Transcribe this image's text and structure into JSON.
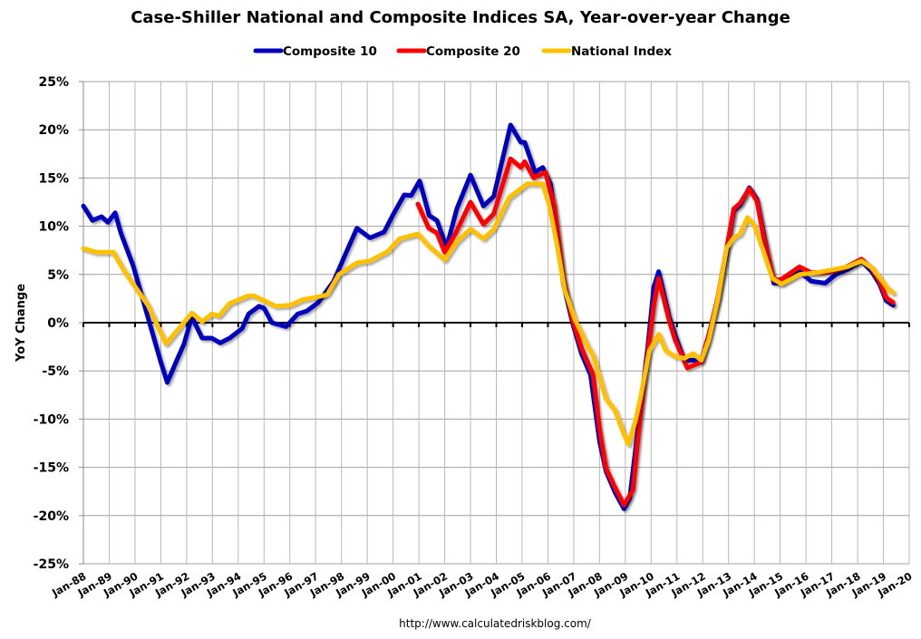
{
  "chart_data": {
    "type": "line",
    "title": "Case-Shiller National and Composite Indices SA, Year-over-year Change",
    "xlabel": "",
    "ylabel": "YoY Change",
    "source": "http://www.calculatedriskblog.com/",
    "xlim": [
      1988,
      2020
    ],
    "ylim": [
      -25,
      25
    ],
    "yticks": [
      "25%",
      "20%",
      "15%",
      "10%",
      "5%",
      "0%",
      "-5%",
      "-10%",
      "-15%",
      "-20%",
      "-25%"
    ],
    "ytick_values": [
      25,
      20,
      15,
      10,
      5,
      0,
      -5,
      -10,
      -15,
      -20,
      -25
    ],
    "xticks": [
      "Jan-88",
      "Jan-89",
      "Jan-90",
      "Jan-91",
      "Jan-92",
      "Jan-93",
      "Jan-94",
      "Jan-95",
      "Jan-96",
      "Jan-97",
      "Jan-98",
      "Jan-99",
      "Jan-00",
      "Jan-01",
      "Jan-02",
      "Jan-03",
      "Jan-04",
      "Jan-05",
      "Jan-06",
      "Jan-07",
      "Jan-08",
      "Jan-09",
      "Jan-10",
      "Jan-11",
      "Jan-12",
      "Jan-13",
      "Jan-14",
      "Jan-15",
      "Jan-16",
      "Jan-17",
      "Jan-18",
      "Jan-19",
      "Jan-20"
    ],
    "grid": true,
    "legend_position": "top",
    "series": [
      {
        "name": "Composite 10",
        "color": "#0000BE",
        "points": [
          [
            1988.0,
            12.1
          ],
          [
            1988.35,
            10.6
          ],
          [
            1988.7,
            11.0
          ],
          [
            1988.95,
            10.4
          ],
          [
            1989.23,
            11.4
          ],
          [
            1989.45,
            9.3
          ],
          [
            1989.93,
            5.9
          ],
          [
            1990.4,
            1.5
          ],
          [
            1991.0,
            -4.1
          ],
          [
            1991.25,
            -6.2
          ],
          [
            1991.6,
            -4.0
          ],
          [
            1991.9,
            -2.2
          ],
          [
            1992.2,
            0.6
          ],
          [
            1992.6,
            -1.6
          ],
          [
            1992.97,
            -1.6
          ],
          [
            1993.3,
            -2.1
          ],
          [
            1993.67,
            -1.6
          ],
          [
            1994.15,
            -0.6
          ],
          [
            1994.4,
            0.9
          ],
          [
            1994.8,
            1.7
          ],
          [
            1995.0,
            1.5
          ],
          [
            1995.3,
            0.0
          ],
          [
            1995.85,
            -0.4
          ],
          [
            1996.3,
            0.9
          ],
          [
            1996.65,
            1.2
          ],
          [
            1997.1,
            2.1
          ],
          [
            1997.7,
            4.3
          ],
          [
            1998.15,
            7.1
          ],
          [
            1998.6,
            9.8
          ],
          [
            1999.1,
            8.8
          ],
          [
            1999.65,
            9.4
          ],
          [
            2000.0,
            11.2
          ],
          [
            2000.43,
            13.25
          ],
          [
            2000.7,
            13.2
          ],
          [
            2001.03,
            14.7
          ],
          [
            2001.4,
            11.1
          ],
          [
            2001.7,
            10.6
          ],
          [
            2002.07,
            7.8
          ],
          [
            2002.47,
            11.8
          ],
          [
            2003.0,
            15.3
          ],
          [
            2003.5,
            12.1
          ],
          [
            2003.9,
            13.1
          ],
          [
            2004.55,
            20.5
          ],
          [
            2004.95,
            18.7
          ],
          [
            2005.1,
            18.7
          ],
          [
            2005.5,
            15.6
          ],
          [
            2005.8,
            16.1
          ],
          [
            2006.1,
            14.4
          ],
          [
            2006.35,
            9.7
          ],
          [
            2006.6,
            4.0
          ],
          [
            2006.95,
            0.0
          ],
          [
            2007.3,
            -3.2
          ],
          [
            2007.65,
            -5.4
          ],
          [
            2008.0,
            -12.3
          ],
          [
            2008.25,
            -15.4
          ],
          [
            2008.6,
            -17.6
          ],
          [
            2008.95,
            -19.3
          ],
          [
            2009.17,
            -18.2
          ],
          [
            2009.5,
            -10.7
          ],
          [
            2009.87,
            -2.5
          ],
          [
            2010.1,
            3.7
          ],
          [
            2010.29,
            5.3
          ],
          [
            2010.7,
            0.6
          ],
          [
            2010.93,
            -1.3
          ],
          [
            2011.28,
            -3.9
          ],
          [
            2011.94,
            -3.9
          ],
          [
            2012.23,
            -1.3
          ],
          [
            2012.58,
            2.4
          ],
          [
            2012.93,
            7.4
          ],
          [
            2013.2,
            11.6
          ],
          [
            2013.45,
            12.2
          ],
          [
            2013.8,
            14.0
          ],
          [
            2014.1,
            12.8
          ],
          [
            2014.35,
            9.3
          ],
          [
            2014.75,
            4.1
          ],
          [
            2015.05,
            4.1
          ],
          [
            2015.75,
            5.3
          ],
          [
            2016.2,
            4.3
          ],
          [
            2016.74,
            4.1
          ],
          [
            2017.15,
            5.0
          ],
          [
            2017.6,
            5.5
          ],
          [
            2018.15,
            6.4
          ],
          [
            2018.55,
            5.3
          ],
          [
            2018.85,
            4.0
          ],
          [
            2019.1,
            2.3
          ],
          [
            2019.38,
            1.8
          ]
        ]
      },
      {
        "name": "Composite 20",
        "color": "#FF0000",
        "points": [
          [
            2000.96,
            12.3
          ],
          [
            2001.38,
            9.8
          ],
          [
            2001.7,
            9.3
          ],
          [
            2002.0,
            7.3
          ],
          [
            2002.43,
            9.3
          ],
          [
            2003.0,
            12.5
          ],
          [
            2003.5,
            10.2
          ],
          [
            2003.9,
            11.3
          ],
          [
            2004.55,
            17.0
          ],
          [
            2004.95,
            16.1
          ],
          [
            2005.1,
            16.7
          ],
          [
            2005.45,
            15.0
          ],
          [
            2005.9,
            15.6
          ],
          [
            2006.25,
            12.1
          ],
          [
            2006.6,
            4.6
          ],
          [
            2006.95,
            0.3
          ],
          [
            2007.3,
            -2.6
          ],
          [
            2007.75,
            -5.4
          ],
          [
            2008.0,
            -11.0
          ],
          [
            2008.25,
            -15.1
          ],
          [
            2008.6,
            -17.1
          ],
          [
            2008.95,
            -18.9
          ],
          [
            2009.3,
            -17.3
          ],
          [
            2009.5,
            -11.6
          ],
          [
            2009.76,
            -5.4
          ],
          [
            2010.1,
            1.8
          ],
          [
            2010.29,
            4.6
          ],
          [
            2010.7,
            0.2
          ],
          [
            2010.93,
            -1.8
          ],
          [
            2011.4,
            -4.7
          ],
          [
            2011.94,
            -4.1
          ],
          [
            2012.23,
            -1.3
          ],
          [
            2012.58,
            2.6
          ],
          [
            2012.93,
            7.8
          ],
          [
            2013.2,
            11.8
          ],
          [
            2013.45,
            12.4
          ],
          [
            2013.8,
            13.9
          ],
          [
            2014.1,
            12.6
          ],
          [
            2014.35,
            9.0
          ],
          [
            2014.75,
            4.4
          ],
          [
            2015.05,
            4.5
          ],
          [
            2015.75,
            5.8
          ],
          [
            2016.2,
            5.2
          ],
          [
            2016.74,
            5.2
          ],
          [
            2017.15,
            5.4
          ],
          [
            2017.5,
            5.7
          ],
          [
            2018.15,
            6.6
          ],
          [
            2018.55,
            5.6
          ],
          [
            2018.85,
            4.3
          ],
          [
            2019.1,
            2.6
          ],
          [
            2019.38,
            2.1
          ]
        ]
      },
      {
        "name": "National Index",
        "color": "#FFC000",
        "points": [
          [
            1988.0,
            7.7
          ],
          [
            1988.5,
            7.3
          ],
          [
            1989.16,
            7.3
          ],
          [
            1989.6,
            5.3
          ],
          [
            1990.5,
            1.8
          ],
          [
            1991.2,
            -2.2
          ],
          [
            1991.7,
            -0.6
          ],
          [
            1992.2,
            1.0
          ],
          [
            1992.6,
            0.1
          ],
          [
            1992.97,
            0.9
          ],
          [
            1993.25,
            0.7
          ],
          [
            1993.67,
            2.0
          ],
          [
            1994.4,
            2.8
          ],
          [
            1994.6,
            2.8
          ],
          [
            1995.45,
            1.7
          ],
          [
            1996.0,
            1.8
          ],
          [
            1996.5,
            2.4
          ],
          [
            1996.96,
            2.6
          ],
          [
            1997.45,
            2.9
          ],
          [
            1997.9,
            5.0
          ],
          [
            1998.6,
            6.2
          ],
          [
            1999.1,
            6.4
          ],
          [
            1999.8,
            7.4
          ],
          [
            2000.25,
            8.7
          ],
          [
            2000.96,
            9.2
          ],
          [
            2001.4,
            7.9
          ],
          [
            2002.0,
            6.5
          ],
          [
            2002.47,
            8.4
          ],
          [
            2003.0,
            9.7
          ],
          [
            2003.5,
            8.7
          ],
          [
            2003.9,
            9.7
          ],
          [
            2004.5,
            13.0
          ],
          [
            2005.2,
            14.4
          ],
          [
            2005.8,
            14.4
          ],
          [
            2006.06,
            12.1
          ],
          [
            2006.35,
            8.1
          ],
          [
            2006.65,
            3.4
          ],
          [
            2007.05,
            0.3
          ],
          [
            2007.55,
            -2.5
          ],
          [
            2007.75,
            -3.4
          ],
          [
            2008.25,
            -7.9
          ],
          [
            2008.6,
            -9.1
          ],
          [
            2008.95,
            -11.6
          ],
          [
            2009.12,
            -12.6
          ],
          [
            2009.4,
            -10.1
          ],
          [
            2009.6,
            -7.6
          ],
          [
            2009.93,
            -2.9
          ],
          [
            2010.29,
            -1.2
          ],
          [
            2010.57,
            -2.9
          ],
          [
            2010.93,
            -3.5
          ],
          [
            2011.28,
            -3.7
          ],
          [
            2011.63,
            -3.2
          ],
          [
            2011.94,
            -3.9
          ],
          [
            2012.23,
            -1.8
          ],
          [
            2012.58,
            2.4
          ],
          [
            2012.93,
            7.8
          ],
          [
            2013.2,
            8.8
          ],
          [
            2013.45,
            9.2
          ],
          [
            2013.73,
            10.9
          ],
          [
            2014.0,
            10.1
          ],
          [
            2014.35,
            7.4
          ],
          [
            2014.7,
            4.6
          ],
          [
            2015.05,
            4.0
          ],
          [
            2015.75,
            5.0
          ],
          [
            2016.45,
            5.2
          ],
          [
            2017.05,
            5.5
          ],
          [
            2017.6,
            5.8
          ],
          [
            2018.15,
            6.4
          ],
          [
            2018.55,
            5.7
          ],
          [
            2018.9,
            4.5
          ],
          [
            2019.15,
            3.6
          ],
          [
            2019.38,
            3.1
          ]
        ]
      }
    ]
  }
}
